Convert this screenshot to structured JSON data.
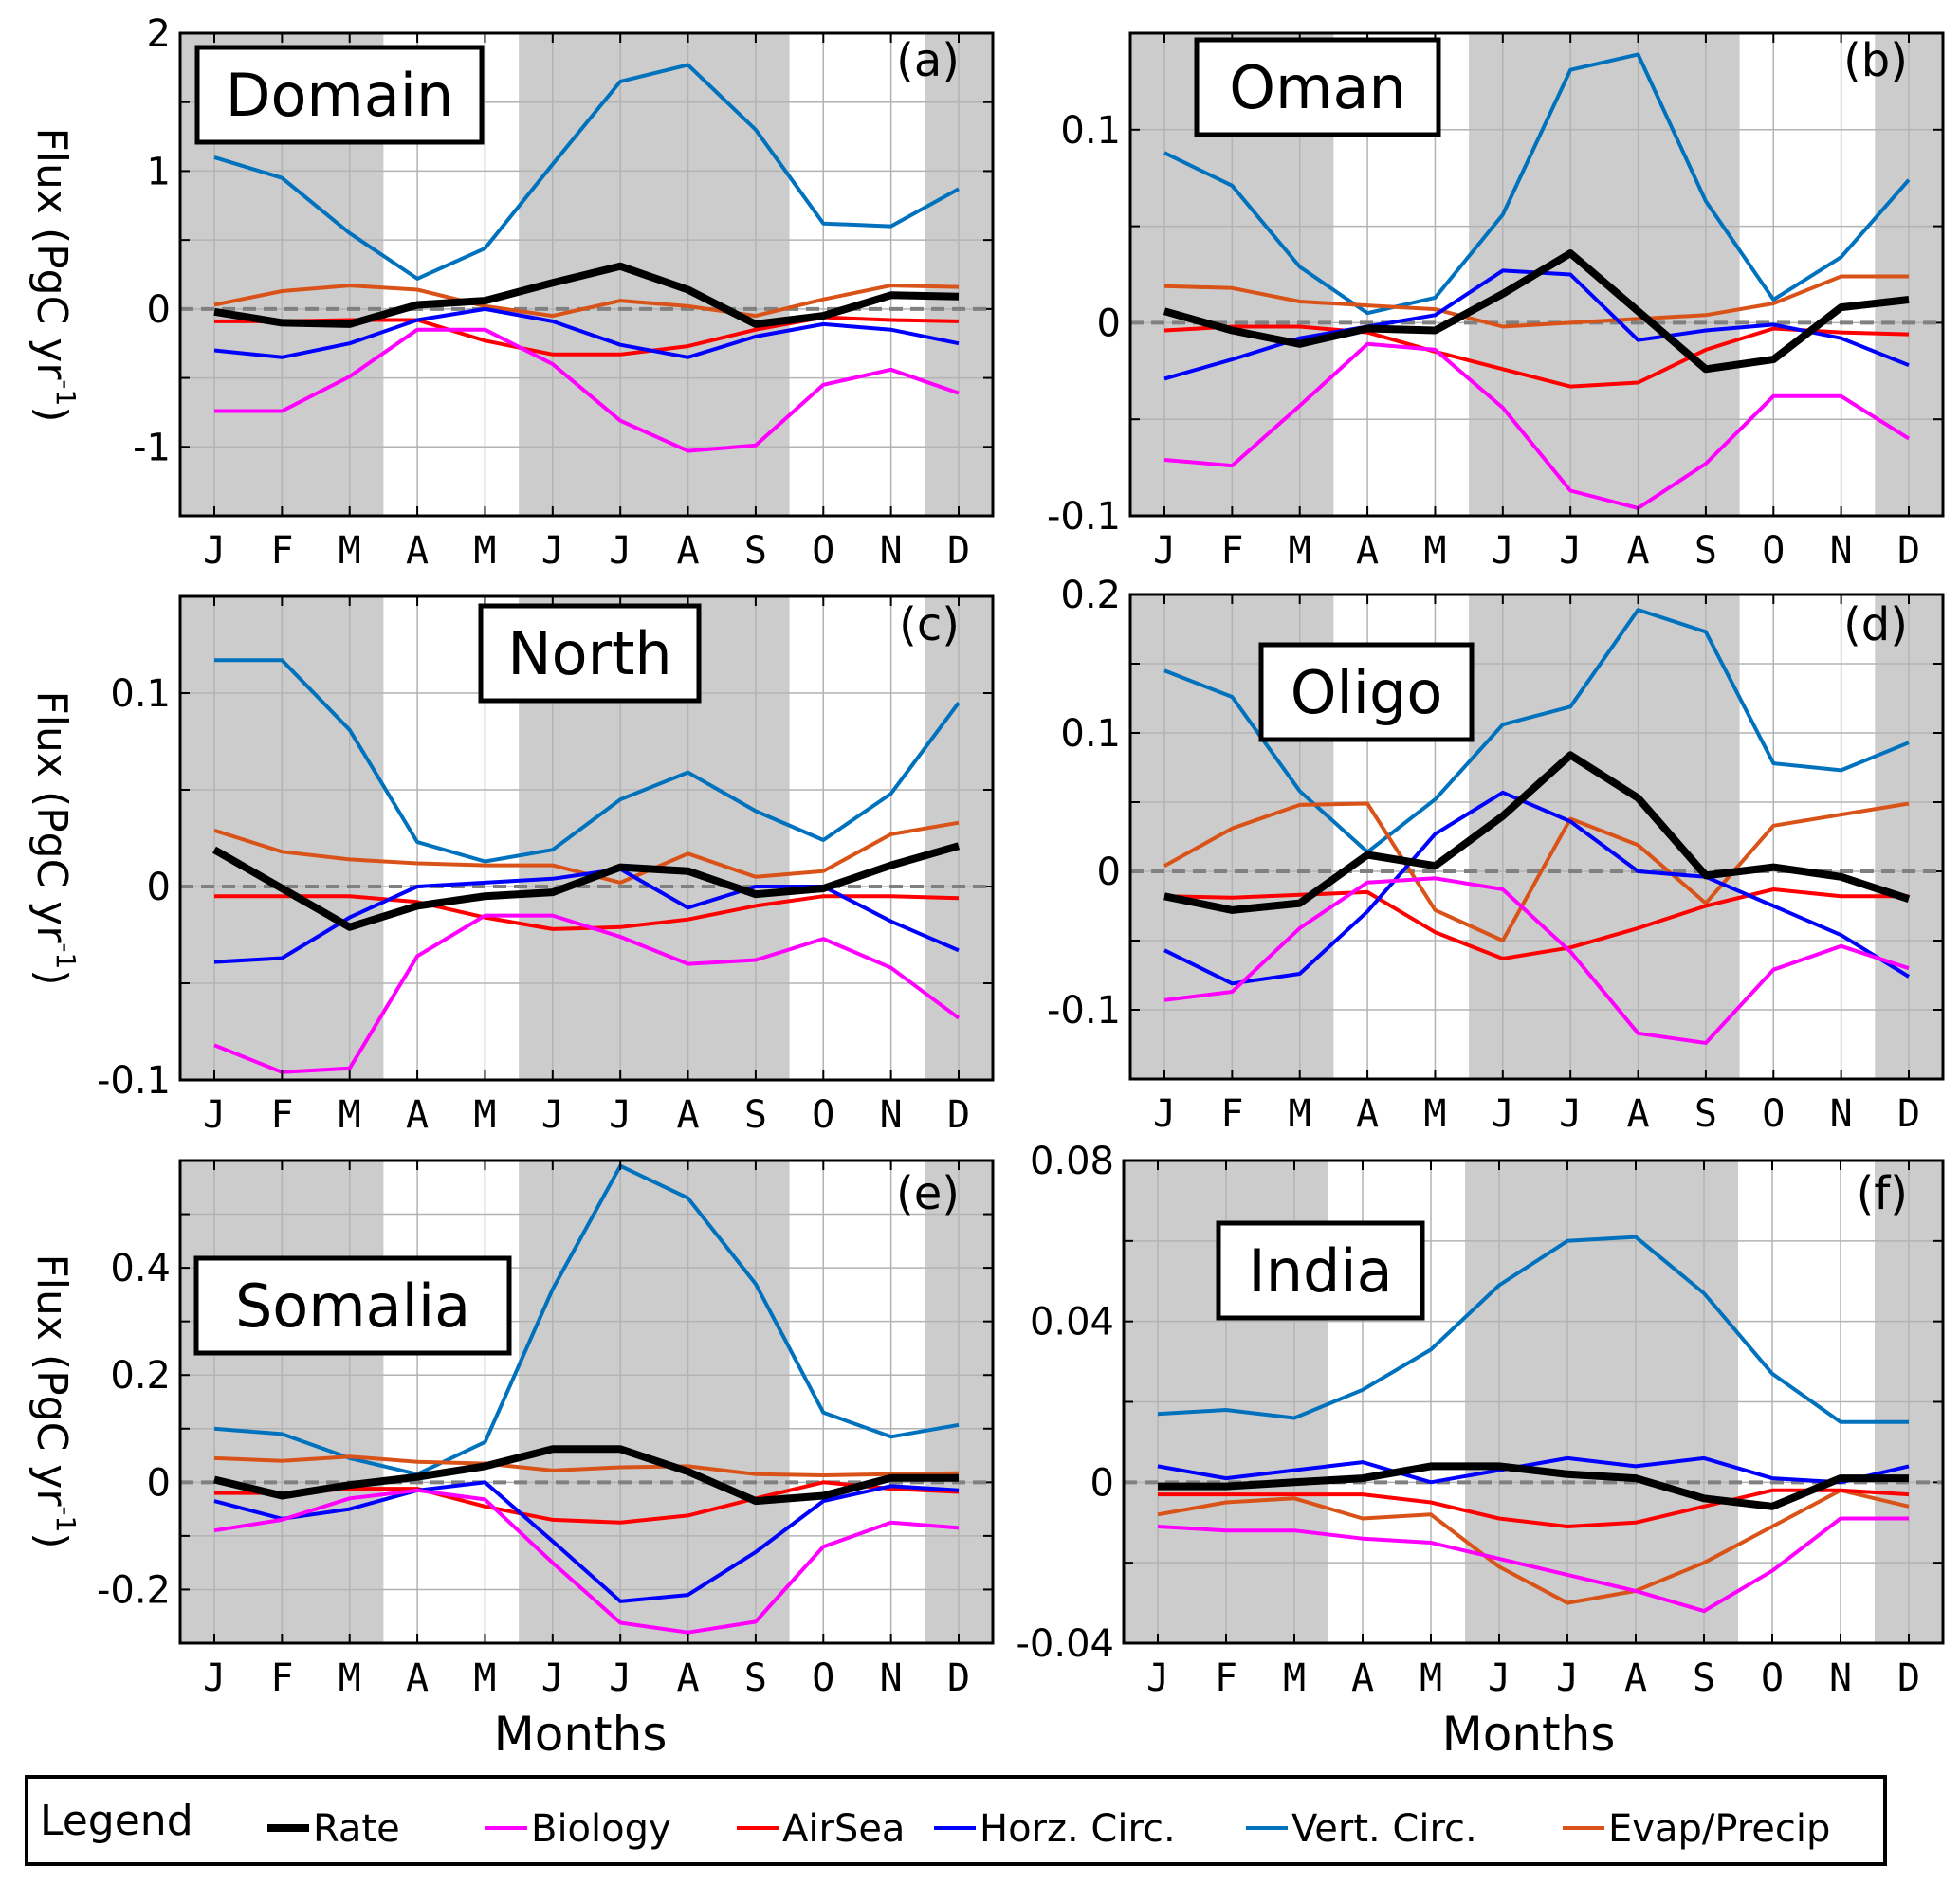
{
  "figure": {
    "xlabel": "Months",
    "ylabel": "Flux (PgC yr",
    "ylabel_sup": "-1",
    "ylabel_close": ")",
    "shaded_months": [
      "D",
      "J",
      "F",
      "M",
      "J",
      "J",
      "A",
      "S"
    ],
    "colors": {
      "shade": "#cccccc",
      "grid": "#b3b3b3",
      "zero_line": "#808080"
    }
  },
  "legend": {
    "title": "Legend",
    "position": "bottom",
    "items": [
      {
        "label": "Rate",
        "color": "#000000"
      },
      {
        "label": "Biology",
        "color": "#ff00ff"
      },
      {
        "label": "AirSea",
        "color": "#ff0000"
      },
      {
        "label": "Horz. Circ.",
        "color": "#0000ff"
      },
      {
        "label": "Vert. Circ.",
        "color": "#0072bd"
      },
      {
        "label": "Evap/Precip",
        "color": "#d95319"
      }
    ]
  },
  "chart_data": [
    {
      "type": "line",
      "panel": "(a)",
      "title": "Domain",
      "xlabel": "",
      "ylabel": "Flux (PgC yr-1)",
      "categories": [
        "J",
        "F",
        "M",
        "A",
        "M",
        "J",
        "J",
        "A",
        "S",
        "O",
        "N",
        "D"
      ],
      "ylim": [
        -1.5,
        2
      ],
      "yticks": [
        -1,
        0,
        1,
        2
      ],
      "ytick_labels": [
        "-1",
        "0",
        "1",
        "2"
      ],
      "grid_step": 0.5,
      "grid": true,
      "series": [
        {
          "name": "Vert. Circ.",
          "values": [
            1.1,
            0.95,
            0.55,
            0.22,
            0.44,
            1.05,
            1.65,
            1.77,
            1.3,
            0.62,
            0.6,
            0.87
          ]
        },
        {
          "name": "Evap/Precip",
          "values": [
            0.03,
            0.13,
            0.17,
            0.14,
            0.02,
            -0.05,
            0.06,
            0.02,
            -0.05,
            0.07,
            0.17,
            0.16
          ]
        },
        {
          "name": "AirSea",
          "values": [
            -0.09,
            -0.09,
            -0.08,
            -0.08,
            -0.23,
            -0.33,
            -0.33,
            -0.27,
            -0.15,
            -0.06,
            -0.08,
            -0.09
          ]
        },
        {
          "name": "Horz. Circ.",
          "values": [
            -0.3,
            -0.35,
            -0.25,
            -0.08,
            0.0,
            -0.09,
            -0.26,
            -0.35,
            -0.2,
            -0.11,
            -0.15,
            -0.25
          ]
        },
        {
          "name": "Biology",
          "values": [
            -0.74,
            -0.74,
            -0.49,
            -0.15,
            -0.15,
            -0.4,
            -0.81,
            -1.03,
            -0.99,
            -0.55,
            -0.44,
            -0.61
          ]
        },
        {
          "name": "Rate",
          "values": [
            -0.02,
            -0.1,
            -0.11,
            0.03,
            0.06,
            0.19,
            0.31,
            0.14,
            -0.11,
            -0.05,
            0.1,
            0.09
          ]
        }
      ]
    },
    {
      "type": "line",
      "panel": "(b)",
      "title": "Oman",
      "xlabel": "",
      "ylabel": "",
      "categories": [
        "J",
        "F",
        "M",
        "A",
        "M",
        "J",
        "J",
        "A",
        "S",
        "O",
        "N",
        "D"
      ],
      "ylim": [
        -0.1,
        0.15
      ],
      "yticks": [
        -0.1,
        0,
        0.1
      ],
      "ytick_labels": [
        "-0.1",
        "0",
        "0.1"
      ],
      "grid_step": 0.05,
      "grid": true,
      "series": [
        {
          "name": "Vert. Circ.",
          "values": [
            0.088,
            0.071,
            0.029,
            0.005,
            0.013,
            0.056,
            0.131,
            0.139,
            0.063,
            0.012,
            0.034,
            0.074
          ]
        },
        {
          "name": "Evap/Precip",
          "values": [
            0.019,
            0.018,
            0.011,
            0.009,
            0.007,
            -0.002,
            0.0,
            0.002,
            0.004,
            0.01,
            0.024,
            0.024
          ]
        },
        {
          "name": "AirSea",
          "values": [
            -0.004,
            -0.002,
            -0.002,
            -0.005,
            -0.015,
            -0.024,
            -0.033,
            -0.031,
            -0.014,
            -0.003,
            -0.005,
            -0.006
          ]
        },
        {
          "name": "Horz. Circ.",
          "values": [
            -0.029,
            -0.019,
            -0.008,
            -0.002,
            0.004,
            0.027,
            0.025,
            -0.009,
            -0.004,
            -0.001,
            -0.008,
            -0.022
          ]
        },
        {
          "name": "Biology",
          "values": [
            -0.071,
            -0.074,
            -0.043,
            -0.011,
            -0.014,
            -0.044,
            -0.087,
            -0.096,
            -0.073,
            -0.038,
            -0.038,
            -0.06
          ]
        },
        {
          "name": "Rate",
          "values": [
            0.006,
            -0.004,
            -0.011,
            -0.003,
            -0.004,
            0.015,
            0.036,
            0.006,
            -0.024,
            -0.019,
            0.008,
            0.012
          ]
        }
      ]
    },
    {
      "type": "line",
      "panel": "(c)",
      "title": "North",
      "xlabel": "",
      "ylabel": "Flux (PgC yr-1)",
      "categories": [
        "J",
        "F",
        "M",
        "A",
        "M",
        "J",
        "J",
        "A",
        "S",
        "O",
        "N",
        "D"
      ],
      "ylim": [
        -0.1,
        0.15
      ],
      "yticks": [
        -0.1,
        0,
        0.1
      ],
      "ytick_labels": [
        "-0.1",
        "0",
        "0.1"
      ],
      "grid_step": 0.05,
      "grid": true,
      "series": [
        {
          "name": "Vert. Circ.",
          "values": [
            0.117,
            0.117,
            0.081,
            0.023,
            0.013,
            0.019,
            0.045,
            0.059,
            0.039,
            0.024,
            0.048,
            0.095
          ]
        },
        {
          "name": "Evap/Precip",
          "values": [
            0.029,
            0.018,
            0.014,
            0.012,
            0.011,
            0.011,
            0.002,
            0.017,
            0.005,
            0.008,
            0.027,
            0.033
          ]
        },
        {
          "name": "AirSea",
          "values": [
            -0.005,
            -0.005,
            -0.005,
            -0.008,
            -0.016,
            -0.022,
            -0.021,
            -0.017,
            -0.01,
            -0.005,
            -0.005,
            -0.006
          ]
        },
        {
          "name": "Horz. Circ.",
          "values": [
            -0.039,
            -0.037,
            -0.016,
            0.0,
            0.002,
            0.004,
            0.009,
            -0.011,
            0.0,
            0.0,
            -0.018,
            -0.033
          ]
        },
        {
          "name": "Biology",
          "values": [
            -0.082,
            -0.096,
            -0.094,
            -0.036,
            -0.015,
            -0.015,
            -0.026,
            -0.04,
            -0.038,
            -0.027,
            -0.042,
            -0.068
          ]
        },
        {
          "name": "Rate",
          "values": [
            0.019,
            -0.001,
            -0.021,
            -0.01,
            -0.005,
            -0.003,
            0.01,
            0.008,
            -0.004,
            -0.001,
            0.011,
            0.021
          ]
        }
      ]
    },
    {
      "type": "line",
      "panel": "(d)",
      "title": "Oligo",
      "xlabel": "",
      "ylabel": "",
      "categories": [
        "J",
        "F",
        "M",
        "A",
        "M",
        "J",
        "J",
        "A",
        "S",
        "O",
        "N",
        "D"
      ],
      "ylim": [
        -0.15,
        0.2
      ],
      "yticks": [
        -0.1,
        0,
        0.1,
        0.2
      ],
      "ytick_labels": [
        "-0.1",
        "0",
        "0.1",
        "0.2"
      ],
      "grid_step": 0.05,
      "grid": true,
      "series": [
        {
          "name": "Vert. Circ.",
          "values": [
            0.145,
            0.126,
            0.058,
            0.014,
            0.052,
            0.106,
            0.119,
            0.189,
            0.173,
            0.078,
            0.073,
            0.093
          ]
        },
        {
          "name": "Evap/Precip",
          "values": [
            0.004,
            0.031,
            0.048,
            0.049,
            -0.028,
            -0.05,
            0.038,
            0.019,
            -0.023,
            0.033,
            0.041,
            0.049
          ]
        },
        {
          "name": "AirSea",
          "values": [
            -0.018,
            -0.019,
            -0.017,
            -0.015,
            -0.044,
            -0.063,
            -0.055,
            -0.041,
            -0.025,
            -0.013,
            -0.018,
            -0.018
          ]
        },
        {
          "name": "Horz. Circ.",
          "values": [
            -0.057,
            -0.081,
            -0.074,
            -0.029,
            0.027,
            0.057,
            0.036,
            0.0,
            -0.004,
            -0.025,
            -0.046,
            -0.076
          ]
        },
        {
          "name": "Biology",
          "values": [
            -0.093,
            -0.087,
            -0.041,
            -0.008,
            -0.005,
            -0.013,
            -0.058,
            -0.117,
            -0.124,
            -0.071,
            -0.054,
            -0.07
          ]
        },
        {
          "name": "Rate",
          "values": [
            -0.018,
            -0.028,
            -0.023,
            0.012,
            0.004,
            0.04,
            0.084,
            0.053,
            -0.003,
            0.003,
            -0.004,
            -0.02
          ]
        }
      ]
    },
    {
      "type": "line",
      "panel": "(e)",
      "title": "Somalia",
      "xlabel": "Months",
      "ylabel": "Flux (PgC yr-1)",
      "categories": [
        "J",
        "F",
        "M",
        "A",
        "M",
        "J",
        "J",
        "A",
        "S",
        "O",
        "N",
        "D"
      ],
      "ylim": [
        -0.3,
        0.6
      ],
      "yticks": [
        -0.2,
        0,
        0.2,
        0.4
      ],
      "ytick_labels": [
        "-0.2",
        "0",
        "0.2",
        "0.4"
      ],
      "grid_step": 0.1,
      "grid": true,
      "series": [
        {
          "name": "Vert. Circ.",
          "values": [
            0.1,
            0.09,
            0.045,
            0.015,
            0.075,
            0.36,
            0.59,
            0.53,
            0.37,
            0.13,
            0.085,
            0.107
          ]
        },
        {
          "name": "Evap/Precip",
          "values": [
            0.045,
            0.04,
            0.048,
            0.038,
            0.035,
            0.022,
            0.028,
            0.03,
            0.015,
            0.013,
            0.015,
            0.017
          ]
        },
        {
          "name": "AirSea",
          "values": [
            -0.02,
            -0.02,
            -0.012,
            -0.012,
            -0.045,
            -0.07,
            -0.075,
            -0.062,
            -0.03,
            0.0,
            -0.012,
            -0.018
          ]
        },
        {
          "name": "Horz. Circ.",
          "values": [
            -0.035,
            -0.068,
            -0.05,
            -0.015,
            0.0,
            -0.11,
            -0.222,
            -0.21,
            -0.13,
            -0.035,
            -0.007,
            -0.015
          ]
        },
        {
          "name": "Biology",
          "values": [
            -0.09,
            -0.07,
            -0.03,
            -0.015,
            -0.032,
            -0.15,
            -0.262,
            -0.28,
            -0.26,
            -0.12,
            -0.075,
            -0.085
          ]
        },
        {
          "name": "Rate",
          "values": [
            0.005,
            -0.025,
            -0.005,
            0.01,
            0.03,
            0.062,
            0.062,
            0.02,
            -0.035,
            -0.025,
            0.008,
            0.008
          ]
        }
      ]
    },
    {
      "type": "line",
      "panel": "(f)",
      "title": "India",
      "xlabel": "Months",
      "ylabel": "",
      "categories": [
        "J",
        "F",
        "M",
        "A",
        "M",
        "J",
        "J",
        "A",
        "S",
        "O",
        "N",
        "D"
      ],
      "ylim": [
        -0.04,
        0.08
      ],
      "yticks": [
        -0.04,
        0,
        0.04,
        0.08
      ],
      "ytick_labels": [
        "-0.04",
        "0",
        "0.04",
        "0.08"
      ],
      "grid_step": 0.02,
      "grid": true,
      "series": [
        {
          "name": "Vert. Circ.",
          "values": [
            0.017,
            0.018,
            0.016,
            0.023,
            0.033,
            0.049,
            0.06,
            0.061,
            0.047,
            0.027,
            0.015,
            0.015
          ]
        },
        {
          "name": "Evap/Precip",
          "values": [
            -0.008,
            -0.005,
            -0.004,
            -0.009,
            -0.008,
            -0.021,
            -0.03,
            -0.027,
            -0.02,
            -0.011,
            -0.002,
            -0.006
          ]
        },
        {
          "name": "AirSea",
          "values": [
            -0.003,
            -0.003,
            -0.003,
            -0.003,
            -0.005,
            -0.009,
            -0.011,
            -0.01,
            -0.006,
            -0.002,
            -0.002,
            -0.003
          ]
        },
        {
          "name": "Horz. Circ.",
          "values": [
            0.004,
            0.001,
            0.003,
            0.005,
            0.0,
            0.003,
            0.006,
            0.004,
            0.006,
            0.001,
            0.0,
            0.004
          ]
        },
        {
          "name": "Biology",
          "values": [
            -0.011,
            -0.012,
            -0.012,
            -0.014,
            -0.015,
            -0.019,
            -0.023,
            -0.027,
            -0.032,
            -0.022,
            -0.009,
            -0.009
          ]
        },
        {
          "name": "Rate",
          "values": [
            -0.001,
            -0.001,
            0.0,
            0.001,
            0.004,
            0.004,
            0.002,
            0.001,
            -0.004,
            -0.006,
            0.001,
            0.001
          ]
        }
      ]
    }
  ]
}
